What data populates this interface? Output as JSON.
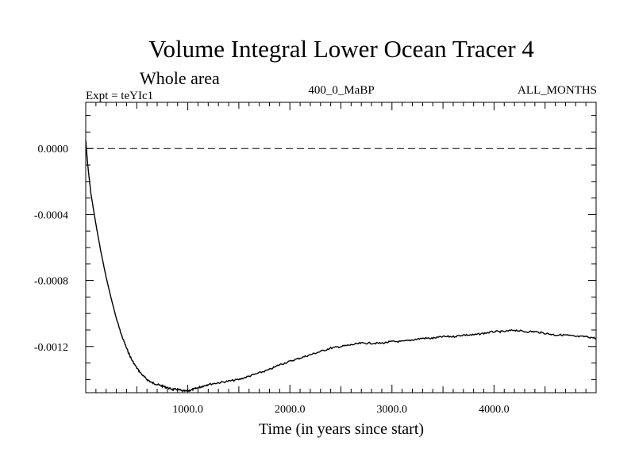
{
  "chart_data": {
    "type": "line",
    "title": "Volume Integral Lower Ocean Tracer 4",
    "subtitle": "Whole area",
    "expt_label": "Expt = teYIc1",
    "period_label": "400_0_MaBP",
    "months_label": "ALL_MONTHS",
    "xlabel": "Time (in years since start)",
    "ylabel": "",
    "xlim": [
      0,
      5000
    ],
    "ylim": [
      -0.00148,
      0.00028
    ],
    "xticks": [
      1000,
      2000,
      3000,
      4000
    ],
    "xtick_labels": [
      "1000.0",
      "2000.0",
      "3000.0",
      "4000.0"
    ],
    "yticks": [
      0.0,
      -0.0004,
      -0.0008,
      -0.0012
    ],
    "ytick_labels": [
      "0.0000",
      "-0.0004",
      "-0.0008",
      "-0.0012"
    ],
    "reference_line": 0.0,
    "series": [
      {
        "name": "Volume integral",
        "x": [
          0,
          20,
          50,
          100,
          150,
          200,
          250,
          300,
          350,
          400,
          450,
          500,
          550,
          600,
          650,
          700,
          750,
          800,
          850,
          900,
          950,
          1000,
          1050,
          1100,
          1150,
          1200,
          1300,
          1400,
          1500,
          1600,
          1700,
          1800,
          1900,
          2000,
          2100,
          2200,
          2300,
          2400,
          2500,
          2600,
          2700,
          2800,
          2900,
          3000,
          3100,
          3200,
          3300,
          3400,
          3500,
          3600,
          3700,
          3800,
          3900,
          4000,
          4100,
          4200,
          4300,
          4400,
          4500,
          4600,
          4700,
          4800,
          4900,
          5000
        ],
        "y": [
          5e-05,
          -0.0001,
          -0.00027,
          -0.00046,
          -0.00063,
          -0.00078,
          -0.00091,
          -0.00103,
          -0.00113,
          -0.00121,
          -0.00128,
          -0.00133,
          -0.00137,
          -0.0014,
          -0.00142,
          -0.00143,
          -0.00144,
          -0.00145,
          -0.00146,
          -0.00146,
          -0.00147,
          -0.00147,
          -0.00146,
          -0.00145,
          -0.00144,
          -0.00143,
          -0.00142,
          -0.00141,
          -0.0014,
          -0.00138,
          -0.00136,
          -0.00134,
          -0.00131,
          -0.00129,
          -0.00127,
          -0.00125,
          -0.00123,
          -0.00121,
          -0.0012,
          -0.00119,
          -0.00118,
          -0.00118,
          -0.00118,
          -0.00117,
          -0.00117,
          -0.00116,
          -0.00115,
          -0.00115,
          -0.00114,
          -0.00114,
          -0.00113,
          -0.00113,
          -0.00112,
          -0.00111,
          -0.00111,
          -0.0011,
          -0.00111,
          -0.00111,
          -0.00112,
          -0.00113,
          -0.00113,
          -0.00114,
          -0.00114,
          -0.00115
        ]
      }
    ]
  }
}
